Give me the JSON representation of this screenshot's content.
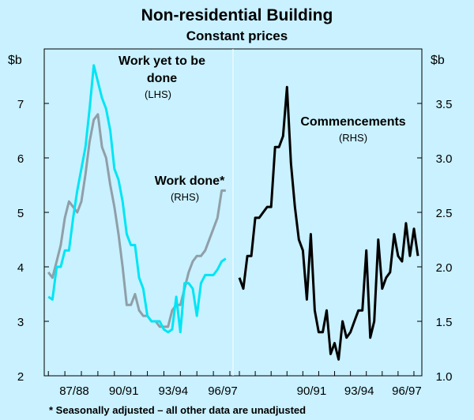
{
  "chart_data": {
    "type": "line",
    "title": "Non-residential Building",
    "subtitle": "Constant prices",
    "left_unit": "$b",
    "right_unit": "$b",
    "left_axis": {
      "min": 2,
      "max": 8,
      "ticks": [
        2,
        3,
        4,
        5,
        6,
        7
      ]
    },
    "right_axis": {
      "min": 1.0,
      "max": 4.0,
      "ticks": [
        "1.0",
        "1.5",
        "2.0",
        "2.5",
        "3.0",
        "3.5"
      ]
    },
    "x_range": [
      1985.75,
      1997.5
    ],
    "left_panel": {
      "x_range": [
        1985.75,
        1997.0
      ],
      "x_ticks": [
        {
          "label": "87/88",
          "x": 1988.0
        },
        {
          "label": "90/91",
          "x": 1991.0
        },
        {
          "label": "93/94",
          "x": 1994.0
        },
        {
          "label": "96/97",
          "x": 1997.0
        }
      ]
    },
    "right_panel": {
      "x_range": [
        1985.75,
        1997.5
      ],
      "x_ticks": [
        {
          "label": "90/91",
          "x": 1991.0
        },
        {
          "label": "93/94",
          "x": 1994.0
        },
        {
          "label": "96/97",
          "x": 1997.0
        }
      ]
    },
    "grid": false,
    "series": [
      {
        "name": "Work yet to be done",
        "axis": "LHS",
        "panel": "left",
        "color": "#00e5f5",
        "x": [
          1986.0,
          1986.25,
          1986.5,
          1986.75,
          1987.0,
          1987.25,
          1987.5,
          1987.75,
          1988.0,
          1988.25,
          1988.5,
          1988.75,
          1989.0,
          1989.25,
          1989.5,
          1989.75,
          1990.0,
          1990.25,
          1990.5,
          1990.75,
          1991.0,
          1991.25,
          1991.5,
          1991.75,
          1992.0,
          1992.25,
          1992.5,
          1992.75,
          1993.0,
          1993.25,
          1993.5,
          1993.75,
          1994.0,
          1994.25,
          1994.5,
          1994.75,
          1995.0,
          1995.25,
          1995.5,
          1995.75,
          1996.0,
          1996.25,
          1996.5,
          1996.75
        ],
        "values": [
          3.45,
          3.4,
          4.0,
          4.0,
          4.3,
          4.3,
          4.9,
          5.4,
          5.8,
          6.2,
          6.9,
          7.7,
          7.4,
          7.1,
          6.9,
          6.5,
          5.8,
          5.6,
          5.2,
          4.6,
          4.4,
          4.4,
          3.8,
          3.6,
          3.1,
          3.0,
          3.0,
          3.0,
          2.85,
          2.8,
          2.85,
          3.45,
          2.8,
          3.7,
          3.7,
          3.6,
          3.1,
          3.7,
          3.85,
          3.85,
          3.85,
          3.95,
          4.1,
          4.15
        ]
      },
      {
        "name": "Work done*",
        "axis": "RHS",
        "panel": "left",
        "color": "#8f9fa8",
        "x": [
          1986.0,
          1986.25,
          1986.5,
          1986.75,
          1987.0,
          1987.25,
          1987.5,
          1987.75,
          1988.0,
          1988.25,
          1988.5,
          1988.75,
          1989.0,
          1989.25,
          1989.5,
          1989.75,
          1990.0,
          1990.25,
          1990.5,
          1990.75,
          1991.0,
          1991.25,
          1991.5,
          1991.75,
          1992.0,
          1992.25,
          1992.5,
          1992.75,
          1993.0,
          1993.25,
          1993.5,
          1993.75,
          1994.0,
          1994.25,
          1994.5,
          1994.75,
          1995.0,
          1995.25,
          1995.5,
          1995.75,
          1996.0,
          1996.25,
          1996.5,
          1996.75
        ],
        "values": [
          1.95,
          1.9,
          2.05,
          2.2,
          2.45,
          2.6,
          2.55,
          2.5,
          2.6,
          2.85,
          3.15,
          3.35,
          3.4,
          3.1,
          3.0,
          2.75,
          2.55,
          2.3,
          2.0,
          1.65,
          1.65,
          1.75,
          1.6,
          1.55,
          1.55,
          1.5,
          1.5,
          1.45,
          1.45,
          1.45,
          1.6,
          1.65,
          1.65,
          1.8,
          1.95,
          2.05,
          2.1,
          2.1,
          2.15,
          2.25,
          2.35,
          2.45,
          2.7,
          2.7
        ]
      },
      {
        "name": "Commencements",
        "axis": "RHS",
        "panel": "right",
        "color": "#000000",
        "x": [
          1986.0,
          1986.25,
          1986.5,
          1986.75,
          1987.0,
          1987.25,
          1987.5,
          1987.75,
          1988.0,
          1988.25,
          1988.5,
          1988.75,
          1989.0,
          1989.25,
          1989.5,
          1989.75,
          1990.0,
          1990.25,
          1990.5,
          1990.75,
          1991.0,
          1991.25,
          1991.5,
          1991.75,
          1992.0,
          1992.25,
          1992.5,
          1992.75,
          1993.0,
          1993.25,
          1993.5,
          1993.75,
          1994.0,
          1994.25,
          1994.5,
          1994.75,
          1995.0,
          1995.25,
          1995.5,
          1995.75,
          1996.0,
          1996.25,
          1996.5,
          1996.75,
          1997.0,
          1997.25
        ],
        "values": [
          1.9,
          1.8,
          2.1,
          2.1,
          2.45,
          2.45,
          2.5,
          2.55,
          2.55,
          3.1,
          3.1,
          3.2,
          3.65,
          2.95,
          2.55,
          2.25,
          2.15,
          1.7,
          2.3,
          1.6,
          1.4,
          1.4,
          1.6,
          1.2,
          1.3,
          1.15,
          1.5,
          1.35,
          1.4,
          1.5,
          1.6,
          1.6,
          2.15,
          1.35,
          1.5,
          2.25,
          1.8,
          1.9,
          1.95,
          2.3,
          2.1,
          2.05,
          2.4,
          2.1,
          2.35,
          2.1
        ]
      }
    ],
    "annotations": [
      {
        "lines": [
          "Work yet to be",
          "done"
        ],
        "sub": "(LHS)"
      },
      {
        "lines": [
          "Work done*"
        ],
        "sub": "(RHS)"
      },
      {
        "lines": [
          "Commencements"
        ],
        "sub": "(RHS)"
      }
    ],
    "footnote": "*   Seasonally adjusted – all other data are unadjusted"
  }
}
